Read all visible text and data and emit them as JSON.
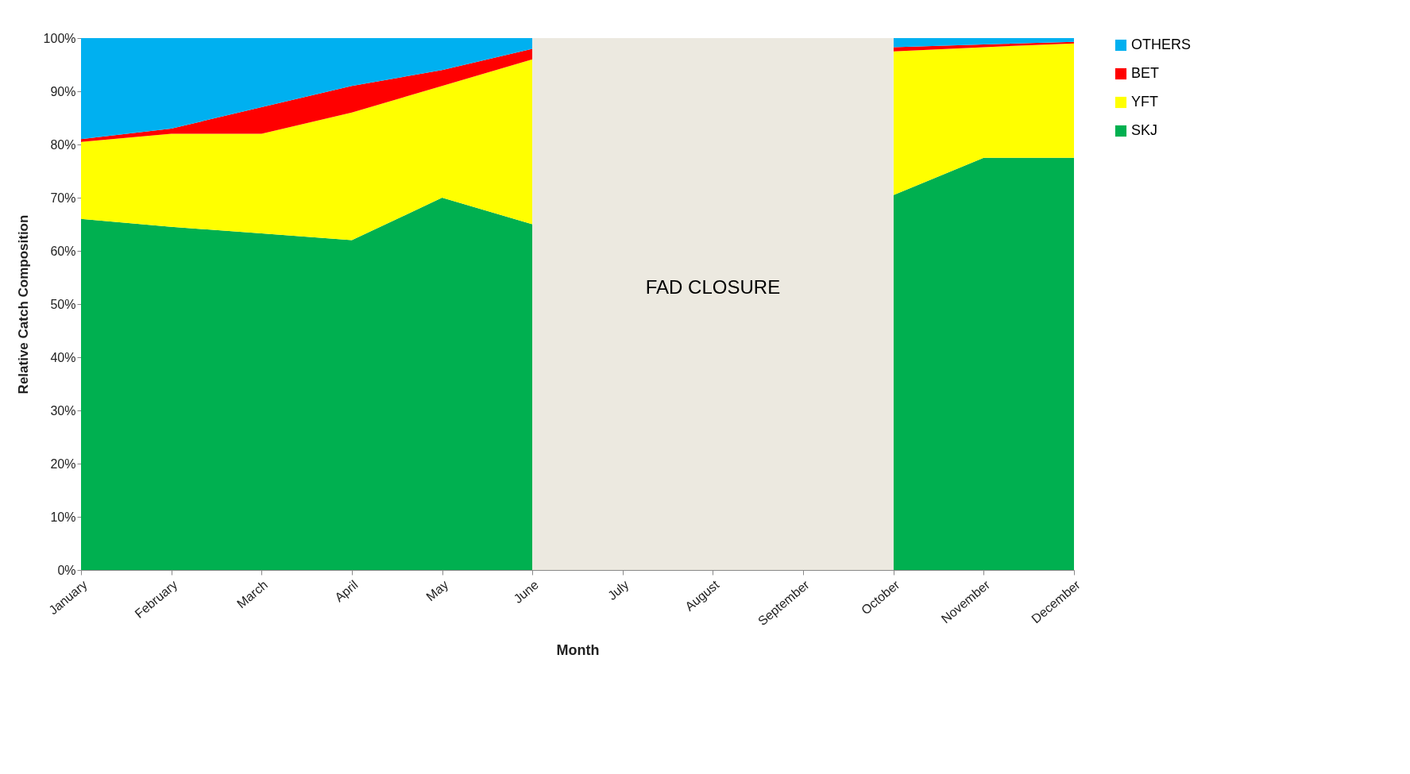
{
  "chart_data": {
    "type": "area",
    "stacked": true,
    "xlabel": "Month",
    "ylabel": "Relative Catch Composition",
    "categories": [
      "January",
      "February",
      "March",
      "April",
      "May",
      "June",
      "July",
      "August",
      "September",
      "October",
      "November",
      "December"
    ],
    "series": [
      {
        "name": "SKJ",
        "color": "#00b050",
        "values": [
          66,
          64.5,
          63.3,
          62,
          70,
          65,
          null,
          null,
          null,
          70.5,
          77.5,
          77.5
        ]
      },
      {
        "name": "YFT",
        "color": "#ffff00",
        "values": [
          14.5,
          17.5,
          18.7,
          24,
          21,
          31,
          null,
          null,
          null,
          27,
          20.8,
          21.5
        ]
      },
      {
        "name": "BET",
        "color": "#ff0000",
        "values": [
          0.5,
          1,
          5,
          5,
          3,
          2,
          null,
          null,
          null,
          0.8,
          0.5,
          0.3
        ]
      },
      {
        "name": "OTHERS",
        "color": "#00b0f0",
        "values": [
          19,
          17,
          13,
          9,
          6,
          2,
          null,
          null,
          null,
          1.7,
          1.2,
          0.7
        ]
      }
    ],
    "ylim": [
      0,
      100
    ],
    "yticks": [
      {
        "value": 0,
        "label": "0%"
      },
      {
        "value": 10,
        "label": "10%"
      },
      {
        "value": 20,
        "label": "20%"
      },
      {
        "value": 30,
        "label": "30%"
      },
      {
        "value": 40,
        "label": "40%"
      },
      {
        "value": 50,
        "label": "50%"
      },
      {
        "value": 60,
        "label": "60%"
      },
      {
        "value": 70,
        "label": "70%"
      },
      {
        "value": 80,
        "label": "80%"
      },
      {
        "value": 90,
        "label": "90%"
      },
      {
        "value": 100,
        "label": "100%"
      }
    ],
    "bands": [
      {
        "axis": "x",
        "from": "June",
        "to": "October",
        "label": "FAD CLOSURE",
        "color": "#ece9e0"
      }
    ],
    "grid": false,
    "legend": "right"
  }
}
